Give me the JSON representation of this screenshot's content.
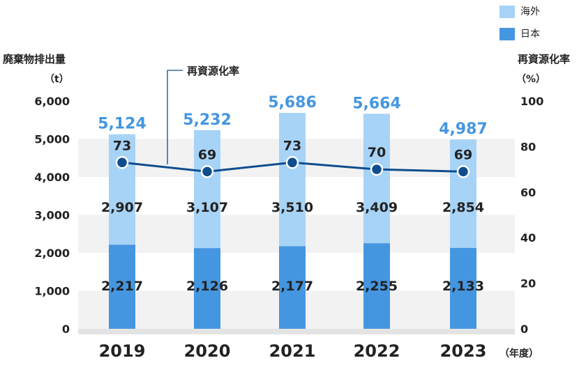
{
  "legend": [
    {
      "label": "海外",
      "color": "#a7d3f7"
    },
    {
      "label": "日本",
      "color": "#4596e1"
    }
  ],
  "left_axis": {
    "title": "廃棄物排出量",
    "unit": "（t）"
  },
  "right_axis": {
    "title": "再資源化率",
    "unit": "（%）"
  },
  "line_callout": "再資源化率",
  "x_axis_unit": "（年度）",
  "chart_data": {
    "type": "bar",
    "stacked": true,
    "categories": [
      "2019",
      "2020",
      "2021",
      "2022",
      "2023"
    ],
    "series": [
      {
        "name": "日本",
        "values": [
          2217,
          2126,
          2177,
          2255,
          2133
        ],
        "color": "#4596e1"
      },
      {
        "name": "海外",
        "values": [
          2907,
          3107,
          3510,
          3409,
          2854
        ],
        "color": "#a7d3f7"
      }
    ],
    "totals": [
      5124,
      5232,
      5686,
      5664,
      4987
    ],
    "totals_color": "#4596e1",
    "line": {
      "name": "再資源化率",
      "values": [
        73,
        69,
        73,
        70,
        69
      ],
      "color": "#0f4d8e",
      "axis": "right"
    },
    "ylim_left": [
      0,
      6000
    ],
    "yticks_left": [
      "0",
      "1,000",
      "2,000",
      "3,000",
      "4,000",
      "5,000",
      "6,000"
    ],
    "ylim_right": [
      0,
      100
    ],
    "yticks_right": [
      "0",
      "20",
      "40",
      "60",
      "80",
      "100"
    ],
    "grid": "alternating horizontal bands"
  }
}
